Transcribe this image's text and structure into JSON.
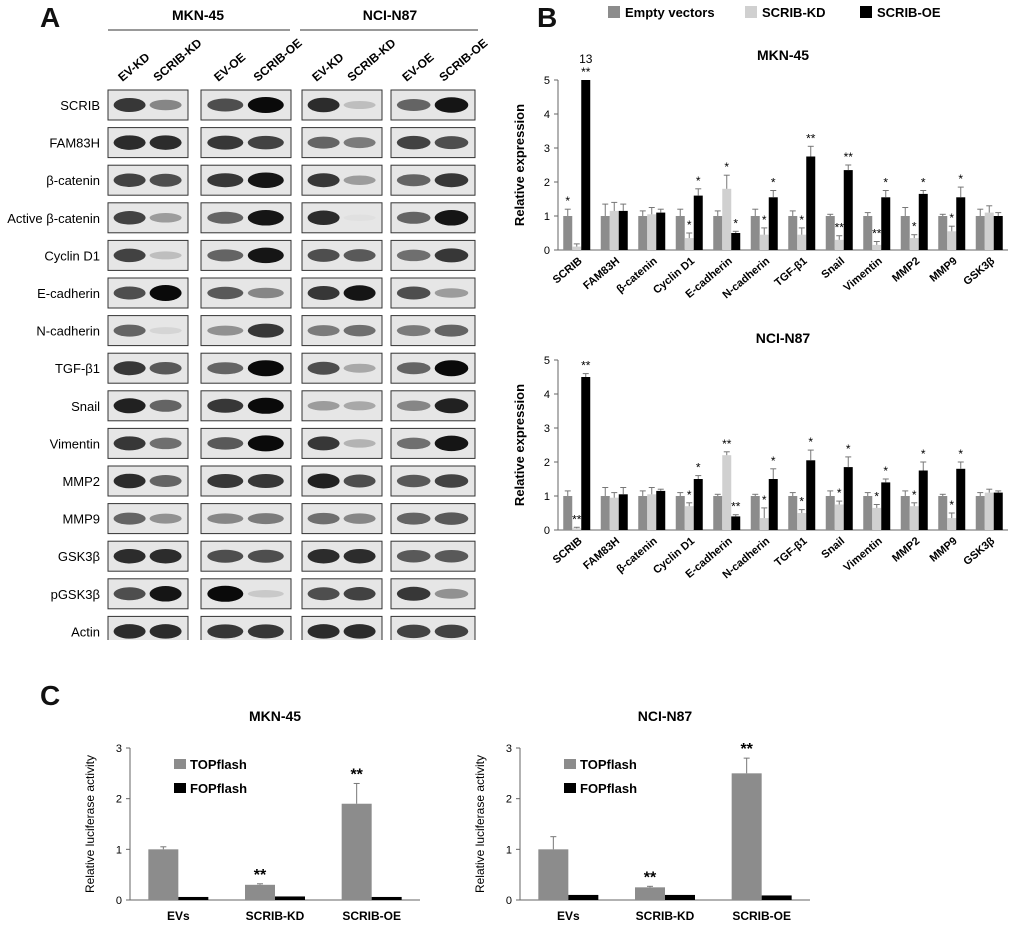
{
  "panels": {
    "a": "A",
    "b": "B",
    "c": "C"
  },
  "blot": {
    "cell_lines": [
      "MKN-45",
      "NCI-N87"
    ],
    "lane_labels": [
      "EV-KD",
      "SCRIB-KD",
      "EV-OE",
      "SCRIB-OE",
      "EV-KD",
      "SCRIB-KD",
      "EV-OE",
      "SCRIB-OE"
    ],
    "proteins": [
      "SCRIB",
      "FAM83H",
      "β-catenin",
      "Active β-catenin",
      "Cyclin D1",
      "E-cadherin",
      "N-cadherin",
      "TGF-β1",
      "Snail",
      "Vimentin",
      "MMP2",
      "MMP9",
      "GSK3β",
      "pGSK3β",
      "Actin"
    ],
    "bands": [
      [
        [
          0.8,
          0.45
        ],
        [
          0.7,
          1.0
        ],
        [
          0.85,
          0.2
        ],
        [
          0.6,
          0.95
        ]
      ],
      [
        [
          0.85,
          0.85
        ],
        [
          0.8,
          0.75
        ],
        [
          0.6,
          0.5
        ],
        [
          0.75,
          0.7
        ]
      ],
      [
        [
          0.75,
          0.7
        ],
        [
          0.8,
          0.95
        ],
        [
          0.8,
          0.35
        ],
        [
          0.6,
          0.8
        ]
      ],
      [
        [
          0.75,
          0.35
        ],
        [
          0.6,
          0.95
        ],
        [
          0.85,
          0.05
        ],
        [
          0.6,
          0.95
        ]
      ],
      [
        [
          0.75,
          0.2
        ],
        [
          0.6,
          0.95
        ],
        [
          0.7,
          0.65
        ],
        [
          0.55,
          0.8
        ]
      ],
      [
        [
          0.7,
          1.0
        ],
        [
          0.65,
          0.45
        ],
        [
          0.8,
          0.95
        ],
        [
          0.7,
          0.35
        ]
      ],
      [
        [
          0.6,
          0.1
        ],
        [
          0.4,
          0.8
        ],
        [
          0.5,
          0.55
        ],
        [
          0.5,
          0.6
        ]
      ],
      [
        [
          0.8,
          0.65
        ],
        [
          0.6,
          1.0
        ],
        [
          0.7,
          0.3
        ],
        [
          0.6,
          1.0
        ]
      ],
      [
        [
          0.9,
          0.6
        ],
        [
          0.8,
          1.0
        ],
        [
          0.35,
          0.3
        ],
        [
          0.45,
          0.9
        ]
      ],
      [
        [
          0.8,
          0.55
        ],
        [
          0.65,
          1.0
        ],
        [
          0.8,
          0.25
        ],
        [
          0.55,
          0.95
        ]
      ],
      [
        [
          0.85,
          0.6
        ],
        [
          0.8,
          0.8
        ],
        [
          0.9,
          0.7
        ],
        [
          0.65,
          0.75
        ]
      ],
      [
        [
          0.6,
          0.4
        ],
        [
          0.45,
          0.5
        ],
        [
          0.55,
          0.45
        ],
        [
          0.6,
          0.65
        ]
      ],
      [
        [
          0.85,
          0.85
        ],
        [
          0.7,
          0.7
        ],
        [
          0.85,
          0.85
        ],
        [
          0.65,
          0.65
        ]
      ],
      [
        [
          0.7,
          0.95
        ],
        [
          1.0,
          0.15
        ],
        [
          0.7,
          0.75
        ],
        [
          0.8,
          0.4
        ]
      ],
      [
        [
          0.85,
          0.85
        ],
        [
          0.8,
          0.8
        ],
        [
          0.85,
          0.85
        ],
        [
          0.75,
          0.75
        ]
      ]
    ]
  },
  "chart_data": [
    {
      "type": "bar",
      "title": "MKN-45",
      "ylabel": "Relative expression",
      "ylim": [
        0,
        5
      ],
      "yticks": [
        "0",
        "1",
        "2",
        "3",
        "4",
        "5"
      ],
      "legend": [
        "Empty vectors",
        "SCRIB-KD",
        "SCRIB-OE"
      ],
      "categories": [
        "SCRIB",
        "FAM83H",
        "β-catenin",
        "Cyclin D1",
        "E-cadherin",
        "N-cadherin",
        "TGF-β1",
        "Snail",
        "Vimentin",
        "MMP2",
        "MMP9",
        "GSK3β"
      ],
      "series": [
        {
          "name": "Empty vectors",
          "values": [
            1,
            1,
            1,
            1,
            1,
            1,
            1,
            1,
            1,
            1,
            1,
            1
          ],
          "errors": [
            0.2,
            0.35,
            0.15,
            0.2,
            0.15,
            0.2,
            0.15,
            0.05,
            0.1,
            0.25,
            0.05,
            0.2
          ]
        },
        {
          "name": "SCRIB-KD",
          "values": [
            0.1,
            1.15,
            1.05,
            0.35,
            1.8,
            0.45,
            0.45,
            0.3,
            0.15,
            0.35,
            0.55,
            1.1
          ],
          "errors": [
            0.08,
            0.25,
            0.2,
            0.15,
            0.4,
            0.2,
            0.2,
            0.12,
            0.1,
            0.1,
            0.15,
            0.2
          ]
        },
        {
          "name": "SCRIB-OE",
          "values": [
            5,
            1.15,
            1.1,
            1.6,
            0.5,
            1.55,
            2.75,
            2.35,
            1.55,
            1.65,
            1.55,
            1.0
          ],
          "errors": [
            0,
            0.2,
            0.1,
            0.2,
            0.05,
            0.2,
            0.3,
            0.15,
            0.2,
            0.1,
            0.3,
            0.1
          ]
        }
      ],
      "annotations": [
        [
          "*",
          "",
          "13\n**"
        ],
        [
          "",
          "",
          ""
        ],
        [
          "",
          "",
          ""
        ],
        [
          "",
          "*",
          "*"
        ],
        [
          "",
          "*",
          "*"
        ],
        [
          "",
          "*",
          "*"
        ],
        [
          "",
          "*",
          "**"
        ],
        [
          "",
          "**",
          "**"
        ],
        [
          "",
          "**",
          "*"
        ],
        [
          "",
          "*",
          "*"
        ],
        [
          "",
          "*",
          "*"
        ],
        [
          "",
          "",
          ""
        ]
      ]
    },
    {
      "type": "bar",
      "title": "NCI-N87",
      "ylabel": "Relative expression",
      "ylim": [
        0,
        5
      ],
      "yticks": [
        "0",
        "1",
        "2",
        "3",
        "4",
        "5"
      ],
      "categories": [
        "SCRIB",
        "FAM83H",
        "β-catenin",
        "Cyclin D1",
        "E-cadherin",
        "N-cadherin",
        "TGF-β1",
        "Snail",
        "Vimentin",
        "MMP2",
        "MMP9",
        "GSK3β"
      ],
      "series": [
        {
          "name": "Empty vectors",
          "values": [
            1,
            1,
            1,
            1,
            1,
            1,
            1,
            1,
            1,
            1,
            1,
            1
          ],
          "errors": [
            0.15,
            0.25,
            0.15,
            0.1,
            0.05,
            0.05,
            0.1,
            0.15,
            0.1,
            0.15,
            0.05,
            0.1
          ]
        },
        {
          "name": "SCRIB-KD",
          "values": [
            0.05,
            0.95,
            1.05,
            0.7,
            2.2,
            0.35,
            0.5,
            0.75,
            0.65,
            0.7,
            0.35,
            1.1
          ],
          "errors": [
            0.03,
            0.15,
            0.2,
            0.1,
            0.1,
            0.3,
            0.1,
            0.1,
            0.1,
            0.1,
            0.15,
            0.1
          ]
        },
        {
          "name": "SCRIB-OE",
          "values": [
            4.5,
            1.05,
            1.15,
            1.5,
            0.4,
            1.5,
            2.05,
            1.85,
            1.4,
            1.75,
            1.8,
            1.1
          ],
          "errors": [
            0.1,
            0.2,
            0.05,
            0.1,
            0.05,
            0.3,
            0.3,
            0.3,
            0.1,
            0.25,
            0.2,
            0.05
          ]
        }
      ],
      "annotations": [
        [
          "",
          "**",
          "**"
        ],
        [
          "",
          "",
          ""
        ],
        [
          "",
          "",
          ""
        ],
        [
          "",
          "*",
          "*"
        ],
        [
          "",
          "**",
          "**"
        ],
        [
          "",
          "*",
          "*"
        ],
        [
          "",
          "*",
          "*"
        ],
        [
          "",
          "*",
          "*"
        ],
        [
          "",
          "*",
          "*"
        ],
        [
          "",
          "*",
          "*"
        ],
        [
          "",
          "*",
          "*"
        ],
        [
          "",
          "",
          ""
        ]
      ]
    },
    {
      "type": "bar",
      "title": "MKN-45",
      "ylabel": "Relative luciferase activity",
      "ylim": [
        0,
        3
      ],
      "yticks": [
        "0",
        "1",
        "2",
        "3"
      ],
      "legend": [
        "TOPflash",
        "FOPflash"
      ],
      "categories": [
        "EVs",
        "SCRIB-KD",
        "SCRIB-OE"
      ],
      "series": [
        {
          "name": "TOPflash",
          "values": [
            1.0,
            0.3,
            1.9
          ],
          "errors": [
            0.05,
            0.02,
            0.4
          ]
        },
        {
          "name": "FOPflash",
          "values": [
            0.06,
            0.07,
            0.06
          ],
          "errors": [
            0,
            0,
            0
          ]
        }
      ],
      "annotations": [
        [
          "",
          ""
        ],
        [
          "**",
          ""
        ],
        [
          "**",
          ""
        ]
      ]
    },
    {
      "type": "bar",
      "title": "NCI-N87",
      "ylabel": "Relative luciferase activity",
      "ylim": [
        0,
        3
      ],
      "yticks": [
        "0",
        "1",
        "2",
        "3"
      ],
      "legend": [
        "TOPflash",
        "FOPflash"
      ],
      "categories": [
        "EVs",
        "SCRIB-KD",
        "SCRIB-OE"
      ],
      "series": [
        {
          "name": "TOPflash",
          "values": [
            1.0,
            0.25,
            2.5
          ],
          "errors": [
            0.25,
            0.02,
            0.3
          ]
        },
        {
          "name": "FOPflash",
          "values": [
            0.1,
            0.1,
            0.09
          ],
          "errors": [
            0,
            0,
            0
          ]
        }
      ],
      "annotations": [
        [
          "",
          ""
        ],
        [
          "**",
          ""
        ],
        [
          "**",
          ""
        ]
      ]
    }
  ],
  "colors": {
    "empty": "#8c8c8c",
    "kd": "#d0d0d0",
    "oe": "#000000",
    "top": "#8c8c8c",
    "fop": "#000000"
  }
}
